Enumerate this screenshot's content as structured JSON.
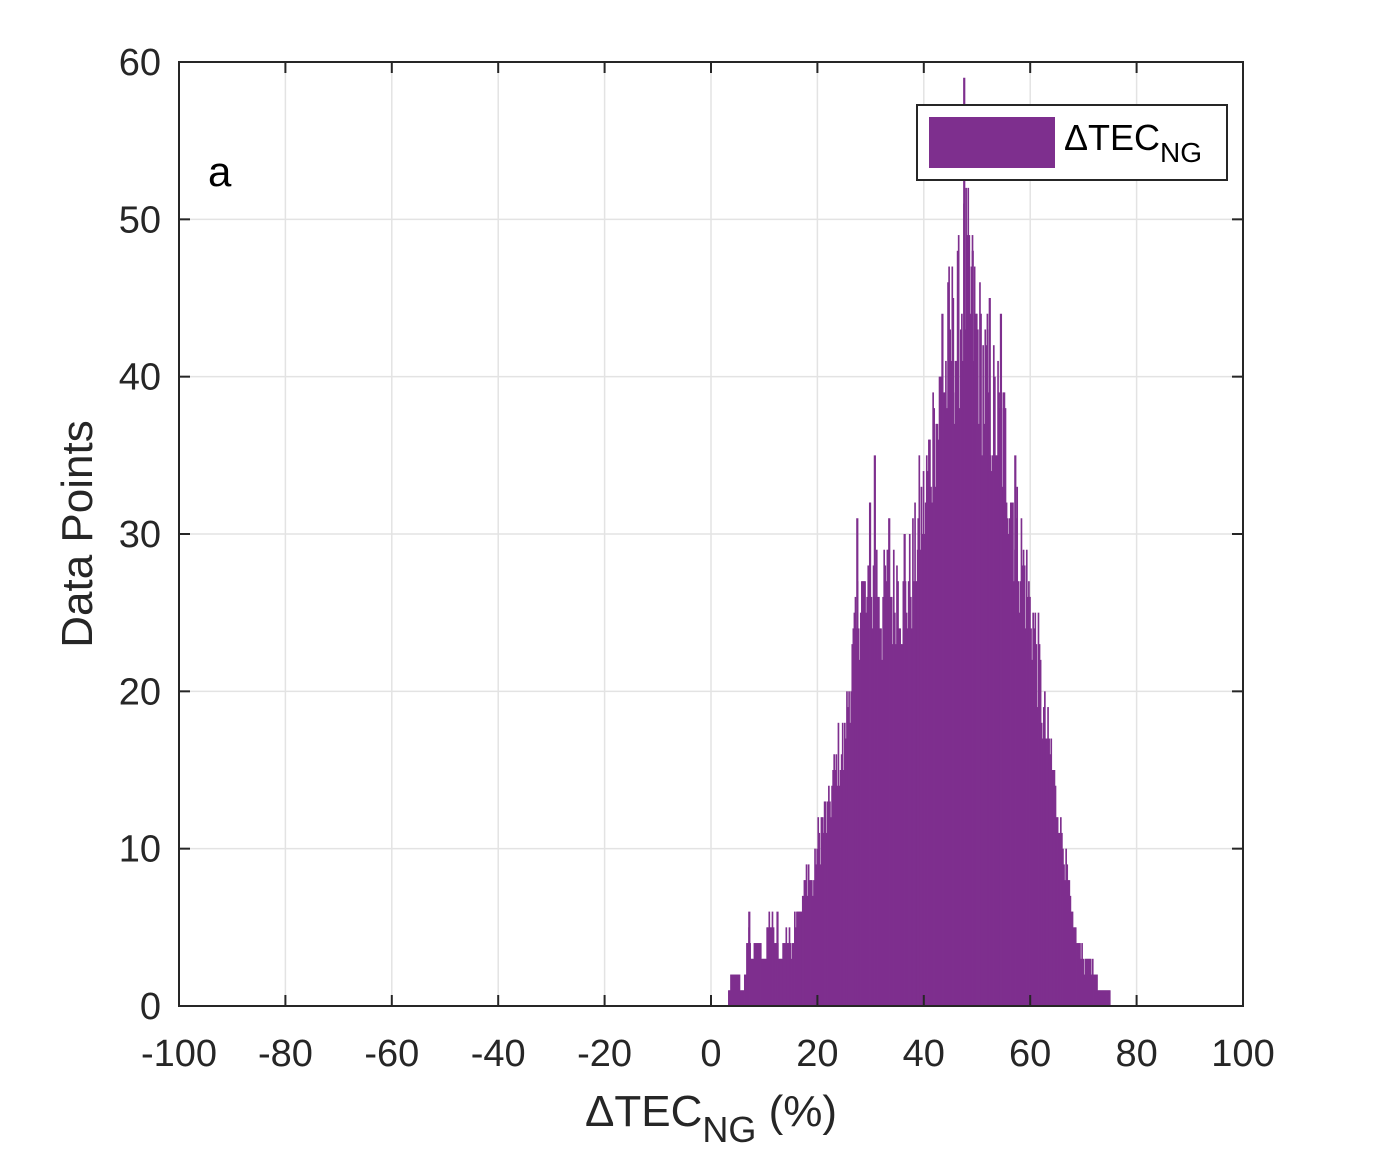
{
  "chart_data": {
    "type": "bar",
    "subtype": "histogram",
    "panel_label": "a",
    "xlabel": {
      "prefix": "ΔTEC",
      "subscript": "NG",
      "suffix": " (%)"
    },
    "ylabel": "Data Points",
    "xlim": [
      -100,
      100
    ],
    "ylim": [
      0,
      60
    ],
    "xticks": [
      "-100",
      "-80",
      "-60",
      "-40",
      "-20",
      "0",
      "20",
      "40",
      "60",
      "80",
      "100"
    ],
    "yticks": [
      "0",
      "10",
      "20",
      "30",
      "40",
      "50",
      "60"
    ],
    "xtick_values": [
      -100,
      -80,
      -60,
      -40,
      -20,
      0,
      20,
      40,
      60,
      80,
      100
    ],
    "ytick_values": [
      0,
      10,
      20,
      30,
      40,
      50,
      60
    ],
    "grid": true,
    "legend_position": "top-right",
    "colors": {
      "bar": "#7E2F8E",
      "axis": "#262626",
      "grid": "#e3e3e3"
    },
    "series": [
      {
        "name_prefix": "ΔTEC",
        "name_subscript": "NG",
        "bin_width": 0.2,
        "bins": [
          [
            3,
            1
          ],
          [
            4,
            2
          ],
          [
            5,
            2
          ],
          [
            5.5,
            1
          ],
          [
            6,
            1
          ],
          [
            7,
            5
          ],
          [
            7.5,
            3
          ],
          [
            8,
            4
          ],
          [
            9,
            4
          ],
          [
            10,
            3
          ],
          [
            11,
            6
          ],
          [
            12,
            4
          ],
          [
            13,
            3
          ],
          [
            14,
            5
          ],
          [
            15,
            4
          ],
          [
            16,
            7
          ],
          [
            17,
            6
          ],
          [
            18,
            9
          ],
          [
            19,
            8
          ],
          [
            20,
            11
          ],
          [
            21,
            12
          ],
          [
            22,
            13
          ],
          [
            23,
            15
          ],
          [
            24,
            17
          ],
          [
            25,
            17
          ],
          [
            26,
            22
          ],
          [
            27,
            24
          ],
          [
            28,
            28
          ],
          [
            29,
            26
          ],
          [
            30,
            27
          ],
          [
            31,
            29
          ],
          [
            32,
            26
          ],
          [
            33,
            28
          ],
          [
            34,
            27
          ],
          [
            35,
            29
          ],
          [
            36,
            26
          ],
          [
            37,
            28
          ],
          [
            38,
            29
          ],
          [
            39,
            32
          ],
          [
            40,
            33
          ],
          [
            41,
            36
          ],
          [
            42,
            38
          ],
          [
            43,
            40
          ],
          [
            44,
            42
          ],
          [
            45,
            44
          ],
          [
            46,
            44
          ],
          [
            47,
            47
          ],
          [
            48,
            48
          ],
          [
            49,
            46
          ],
          [
            50,
            44
          ],
          [
            51,
            42
          ],
          [
            52,
            40
          ],
          [
            53,
            39
          ],
          [
            54,
            38
          ],
          [
            55,
            37
          ],
          [
            56,
            35
          ],
          [
            57,
            32
          ],
          [
            58,
            30
          ],
          [
            59,
            28
          ],
          [
            60,
            26
          ],
          [
            61,
            24
          ],
          [
            62,
            20
          ],
          [
            63,
            18
          ],
          [
            64,
            16
          ],
          [
            65,
            13
          ],
          [
            66,
            11
          ],
          [
            67,
            8
          ],
          [
            68,
            5
          ],
          [
            69,
            4
          ],
          [
            70,
            3
          ],
          [
            71,
            3
          ],
          [
            72,
            2
          ],
          [
            73,
            1
          ],
          [
            74,
            1
          ],
          [
            75,
            1
          ]
        ],
        "peaks": [
          [
            7.2,
            6
          ],
          [
            12.5,
            6
          ],
          [
            17.3,
            7
          ],
          [
            21.4,
            12
          ],
          [
            25.4,
            17
          ],
          [
            27.5,
            31
          ],
          [
            29.9,
            32
          ],
          [
            30.8,
            35
          ],
          [
            33.5,
            31
          ],
          [
            36.4,
            30
          ],
          [
            38.9,
            29
          ],
          [
            41.9,
            38
          ],
          [
            43.5,
            44
          ],
          [
            45.5,
            45
          ],
          [
            47.6,
            59
          ],
          [
            49.2,
            48
          ],
          [
            52.4,
            45
          ],
          [
            54.5,
            44
          ],
          [
            57.2,
            35
          ],
          [
            59.8,
            26
          ],
          [
            62.1,
            17
          ],
          [
            66.1,
            7
          ]
        ]
      }
    ]
  }
}
